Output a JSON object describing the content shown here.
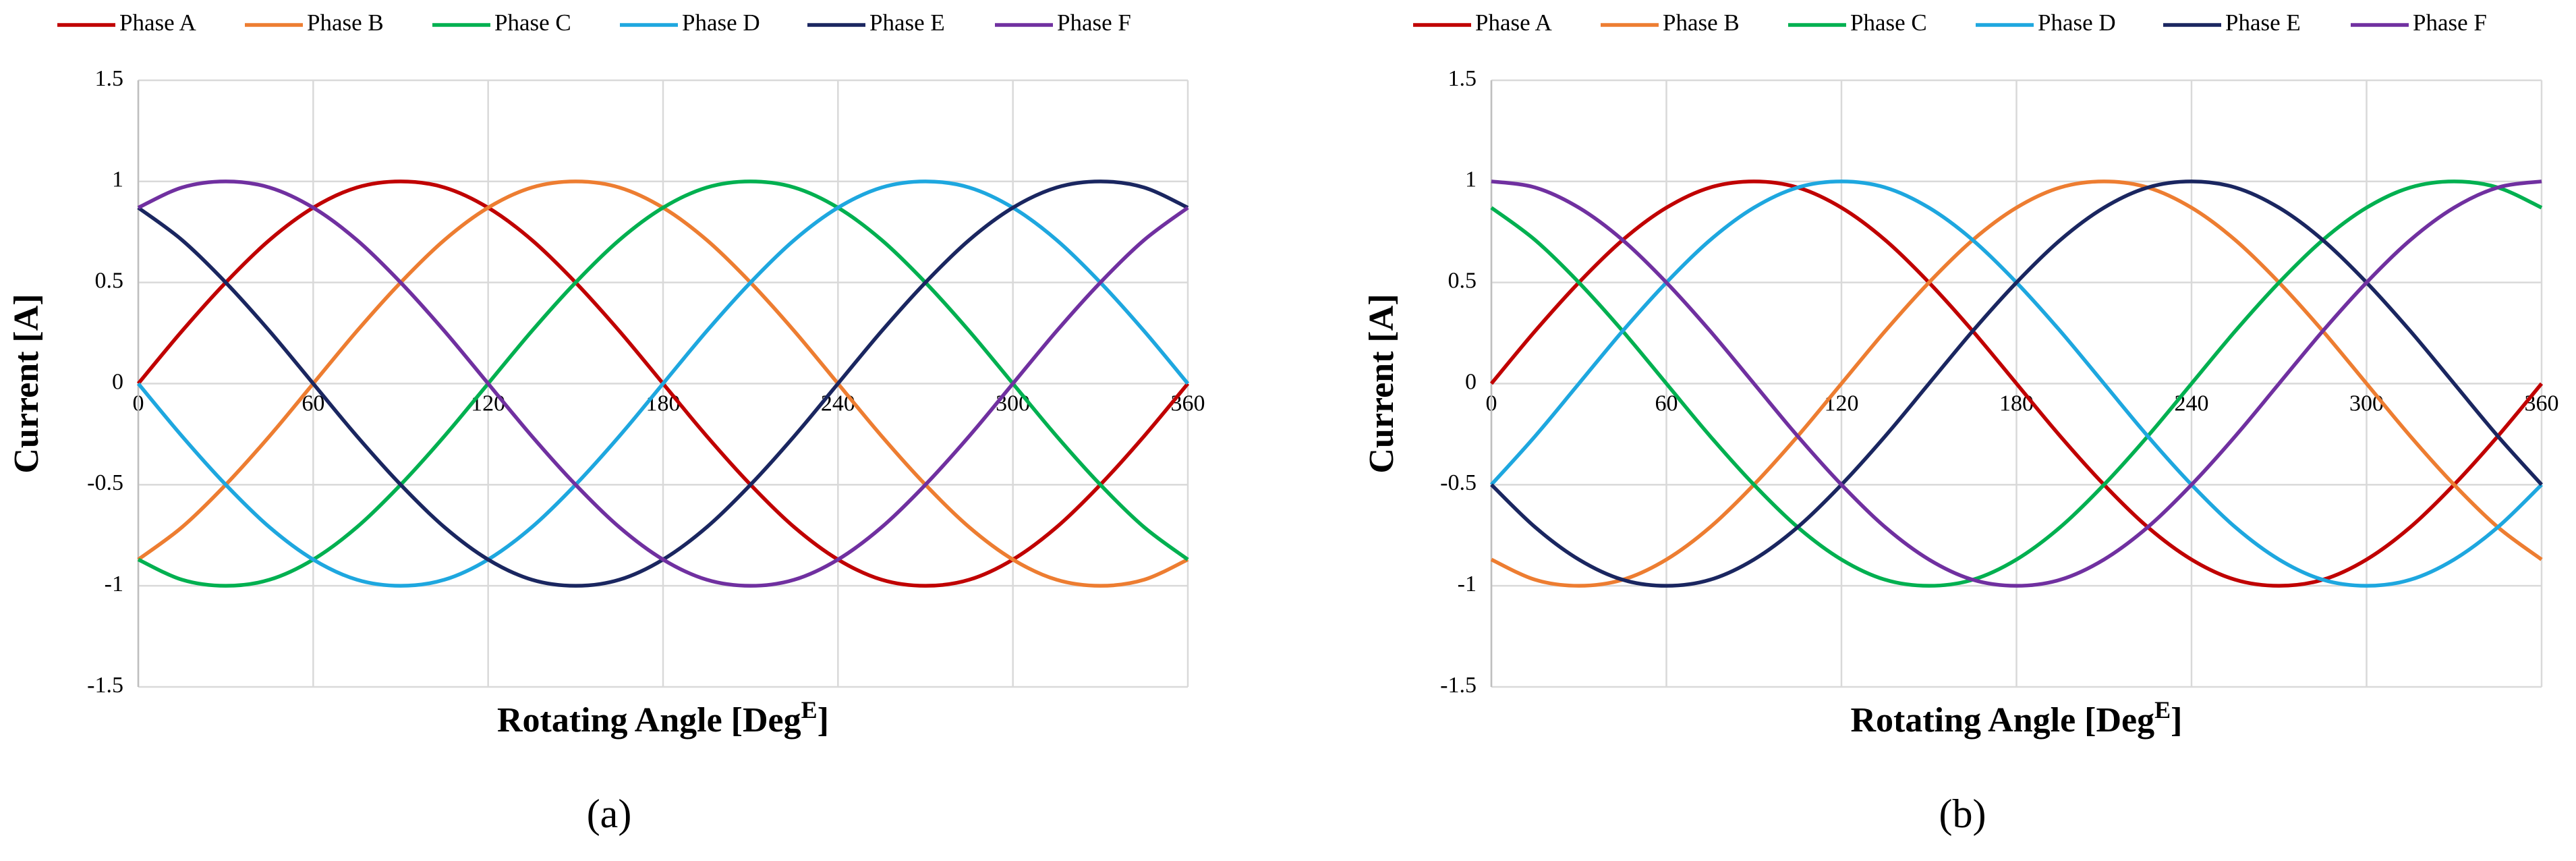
{
  "chart_data": [
    {
      "type": "line",
      "caption": "(a)",
      "y_label": "Current [A]",
      "x_label": {
        "text": "Rotating Angle [Deg",
        "superscript": "E",
        "suffix": "]"
      },
      "x": [
        0,
        15,
        30,
        45,
        60,
        75,
        90,
        105,
        120,
        135,
        150,
        165,
        180,
        195,
        210,
        225,
        240,
        255,
        270,
        285,
        300,
        315,
        330,
        345,
        360
      ],
      "xlim": [
        0,
        360
      ],
      "xticks": [
        0,
        60,
        120,
        180,
        240,
        300,
        360
      ],
      "ylim": [
        -1.5,
        1.5
      ],
      "yticks": [
        -1.5,
        -1,
        -0.5,
        0,
        0.5,
        1,
        1.5
      ],
      "grid": true,
      "legend": "top",
      "series": [
        {
          "name": "Phase A",
          "color": "#c00000",
          "values": [
            0,
            0.26,
            0.5,
            0.71,
            0.87,
            0.97,
            1,
            0.97,
            0.87,
            0.71,
            0.5,
            0.26,
            0,
            -0.26,
            -0.5,
            -0.71,
            -0.87,
            -0.97,
            -1,
            -0.97,
            -0.87,
            -0.71,
            -0.5,
            -0.26,
            0
          ]
        },
        {
          "name": "Phase B",
          "color": "#ed7d31",
          "values": [
            -0.87,
            -0.71,
            -0.5,
            -0.26,
            0,
            0.26,
            0.5,
            0.71,
            0.87,
            0.97,
            1,
            0.97,
            0.87,
            0.71,
            0.5,
            0.26,
            0,
            -0.26,
            -0.5,
            -0.71,
            -0.87,
            -0.97,
            -1,
            -0.97,
            -0.87
          ]
        },
        {
          "name": "Phase C",
          "color": "#00b050",
          "values": [
            -0.87,
            -0.97,
            -1,
            -0.97,
            -0.87,
            -0.71,
            -0.5,
            -0.26,
            0,
            0.26,
            0.5,
            0.71,
            0.87,
            0.97,
            1,
            0.97,
            0.87,
            0.71,
            0.5,
            0.26,
            0,
            -0.26,
            -0.5,
            -0.71,
            -0.87
          ]
        },
        {
          "name": "Phase D",
          "color": "#1ea7df",
          "values": [
            0,
            -0.26,
            -0.5,
            -0.71,
            -0.87,
            -0.97,
            -1,
            -0.97,
            -0.87,
            -0.71,
            -0.5,
            -0.26,
            0,
            0.26,
            0.5,
            0.71,
            0.87,
            0.97,
            1,
            0.97,
            0.87,
            0.71,
            0.5,
            0.26,
            0
          ]
        },
        {
          "name": "Phase E",
          "color": "#1a2660",
          "values": [
            0.87,
            0.71,
            0.5,
            0.26,
            0,
            -0.26,
            -0.5,
            -0.71,
            -0.87,
            -0.97,
            -1,
            -0.97,
            -0.87,
            -0.71,
            -0.5,
            -0.26,
            0,
            0.26,
            0.5,
            0.71,
            0.87,
            0.97,
            1,
            0.97,
            0.87
          ]
        },
        {
          "name": "Phase F",
          "color": "#7030a0",
          "values": [
            0.87,
            0.97,
            1,
            0.97,
            0.87,
            0.71,
            0.5,
            0.26,
            0,
            -0.26,
            -0.5,
            -0.71,
            -0.87,
            -0.97,
            -1,
            -0.97,
            -0.87,
            -0.71,
            -0.5,
            -0.26,
            0,
            0.26,
            0.5,
            0.71,
            0.87
          ]
        }
      ]
    },
    {
      "type": "line",
      "caption": "(b)",
      "y_label": "Current [A]",
      "x_label": {
        "text": "Rotating Angle [Deg",
        "superscript": "E",
        "suffix": "]"
      },
      "x": [
        0,
        15,
        30,
        45,
        60,
        75,
        90,
        105,
        120,
        135,
        150,
        165,
        180,
        195,
        210,
        225,
        240,
        255,
        270,
        285,
        300,
        315,
        330,
        345,
        360
      ],
      "xlim": [
        0,
        360
      ],
      "xticks": [
        0,
        60,
        120,
        180,
        240,
        300,
        360
      ],
      "ylim": [
        -1.5,
        1.5
      ],
      "yticks": [
        -1.5,
        -1,
        -0.5,
        0,
        0.5,
        1,
        1.5
      ],
      "grid": true,
      "legend": "top",
      "series": [
        {
          "name": "Phase A",
          "color": "#c00000",
          "values": [
            0,
            0.26,
            0.5,
            0.71,
            0.87,
            0.97,
            1,
            0.97,
            0.87,
            0.71,
            0.5,
            0.26,
            0,
            -0.26,
            -0.5,
            -0.71,
            -0.87,
            -0.97,
            -1,
            -0.97,
            -0.87,
            -0.71,
            -0.5,
            -0.26,
            0
          ]
        },
        {
          "name": "Phase B",
          "color": "#ed7d31",
          "values": [
            -0.87,
            -0.97,
            -1,
            -0.97,
            -0.87,
            -0.71,
            -0.5,
            -0.26,
            0,
            0.26,
            0.5,
            0.71,
            0.87,
            0.97,
            1,
            0.97,
            0.87,
            0.71,
            0.5,
            0.26,
            0,
            -0.26,
            -0.5,
            -0.71,
            -0.87
          ]
        },
        {
          "name": "Phase C",
          "color": "#00b050",
          "values": [
            0.87,
            0.71,
            0.5,
            0.26,
            0,
            -0.26,
            -0.5,
            -0.71,
            -0.87,
            -0.97,
            -1,
            -0.97,
            -0.87,
            -0.71,
            -0.5,
            -0.26,
            0,
            0.26,
            0.5,
            0.71,
            0.87,
            0.97,
            1,
            0.97,
            0.87
          ]
        },
        {
          "name": "Phase D",
          "color": "#1ea7df",
          "values": [
            -0.5,
            -0.26,
            0,
            0.26,
            0.5,
            0.71,
            0.87,
            0.97,
            1,
            0.97,
            0.87,
            0.71,
            0.5,
            0.26,
            0,
            -0.26,
            -0.5,
            -0.71,
            -0.87,
            -0.97,
            -1,
            -0.97,
            -0.87,
            -0.71,
            -0.5
          ]
        },
        {
          "name": "Phase E",
          "color": "#1a2660",
          "values": [
            -0.5,
            -0.71,
            -0.87,
            -0.97,
            -1,
            -0.97,
            -0.87,
            -0.71,
            -0.5,
            -0.26,
            0,
            0.26,
            0.5,
            0.71,
            0.87,
            0.97,
            1,
            0.97,
            0.87,
            0.71,
            0.5,
            0.26,
            0,
            -0.26,
            -0.5
          ]
        },
        {
          "name": "Phase F",
          "color": "#7030a0",
          "values": [
            1,
            0.97,
            0.87,
            0.71,
            0.5,
            0.26,
            0,
            -0.26,
            -0.5,
            -0.71,
            -0.87,
            -0.97,
            -1,
            -0.97,
            -0.87,
            -0.71,
            -0.5,
            -0.26,
            0,
            0.26,
            0.5,
            0.71,
            0.87,
            0.97,
            1
          ]
        }
      ]
    }
  ]
}
